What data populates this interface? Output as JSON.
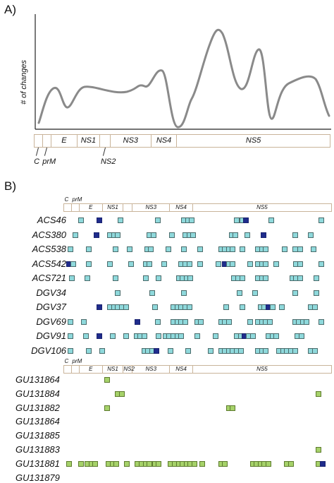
{
  "panel_a": {
    "label": "A)",
    "ylabel": "# of changes",
    "curve_color": "#8a8a8a",
    "segments": [
      {
        "name": "",
        "len": 1.0
      },
      {
        "name": "",
        "len": 1.0
      },
      {
        "name": "E",
        "len": 3.0
      },
      {
        "name": "NS1",
        "len": 2.7
      },
      {
        "name": "",
        "len": 1.2
      },
      {
        "name": "NS3",
        "len": 4.8
      },
      {
        "name": "NS4",
        "len": 3.0
      },
      {
        "name": "NS5",
        "len": 17.9
      }
    ],
    "below_labels": [
      {
        "text": "C",
        "seg": 0
      },
      {
        "text": "prM",
        "seg": 1
      },
      {
        "text": "NS2",
        "seg": 4
      }
    ]
  },
  "panel_b": {
    "label": "B)",
    "bar_top": {
      "segments": [
        {
          "name": "",
          "len": 1.0
        },
        {
          "name": "",
          "len": 1.0
        },
        {
          "name": "E",
          "len": 3.0
        },
        {
          "name": "NS1",
          "len": 2.7
        },
        {
          "name": "",
          "len": 1.2
        },
        {
          "name": "NS3",
          "len": 4.8
        },
        {
          "name": "NS4",
          "len": 3.0
        },
        {
          "name": "NS5",
          "len": 17.9
        }
      ],
      "above_labels": [
        {
          "text": "C",
          "seg": 0
        },
        {
          "text": "prM",
          "seg": 1
        }
      ]
    },
    "bar_bottom": {
      "segments": [
        {
          "name": "",
          "len": 1.0
        },
        {
          "name": "",
          "len": 1.0
        },
        {
          "name": "E",
          "len": 3.0
        },
        {
          "name": "NS1",
          "len": 2.7
        },
        {
          "name": "NS2",
          "len": 1.2
        },
        {
          "name": "NS3",
          "len": 4.8
        },
        {
          "name": "NS4",
          "len": 3.0
        },
        {
          "name": "NS5",
          "len": 17.9
        }
      ],
      "above_labels": [
        {
          "text": "C",
          "seg": 0
        },
        {
          "text": "prM",
          "seg": 1
        }
      ]
    },
    "colors": {
      "teal": "#8fd9dc",
      "navy": "#1f2c8c",
      "green": "#a6d26a"
    },
    "group1": [
      {
        "name": "ACS46",
        "marks": [
          [
            0.05,
            "t"
          ],
          [
            0.12,
            "n"
          ],
          [
            0.2,
            "t"
          ],
          [
            0.34,
            "t"
          ],
          [
            0.44,
            "t"
          ],
          [
            0.455,
            "t"
          ],
          [
            0.47,
            "t"
          ],
          [
            0.64,
            "t"
          ],
          [
            0.66,
            "t"
          ],
          [
            0.675,
            "n"
          ],
          [
            0.77,
            "t"
          ],
          [
            0.96,
            "t"
          ]
        ]
      },
      {
        "name": "ACS380",
        "marks": [
          [
            0.03,
            "t"
          ],
          [
            0.11,
            "n"
          ],
          [
            0.16,
            "t"
          ],
          [
            0.175,
            "t"
          ],
          [
            0.19,
            "t"
          ],
          [
            0.31,
            "t"
          ],
          [
            0.325,
            "t"
          ],
          [
            0.395,
            "t"
          ],
          [
            0.445,
            "t"
          ],
          [
            0.46,
            "t"
          ],
          [
            0.475,
            "t"
          ],
          [
            0.62,
            "t"
          ],
          [
            0.635,
            "t"
          ],
          [
            0.68,
            "t"
          ],
          [
            0.74,
            "n"
          ],
          [
            0.86,
            "t"
          ],
          [
            0.92,
            "t"
          ]
        ]
      },
      {
        "name": "ACS538",
        "marks": [
          [
            0.01,
            "t"
          ],
          [
            0.08,
            "t"
          ],
          [
            0.18,
            "t"
          ],
          [
            0.235,
            "t"
          ],
          [
            0.3,
            "t"
          ],
          [
            0.315,
            "t"
          ],
          [
            0.38,
            "t"
          ],
          [
            0.44,
            "t"
          ],
          [
            0.5,
            "t"
          ],
          [
            0.58,
            "t"
          ],
          [
            0.595,
            "t"
          ],
          [
            0.61,
            "t"
          ],
          [
            0.625,
            "t"
          ],
          [
            0.66,
            "t"
          ],
          [
            0.72,
            "t"
          ],
          [
            0.735,
            "t"
          ],
          [
            0.75,
            "t"
          ],
          [
            0.82,
            "t"
          ],
          [
            0.86,
            "t"
          ],
          [
            0.88,
            "t"
          ],
          [
            0.93,
            "t"
          ]
        ]
      },
      {
        "name": "ACS542",
        "marks": [
          [
            0.005,
            "n"
          ],
          [
            0.02,
            "t"
          ],
          [
            0.08,
            "t"
          ],
          [
            0.16,
            "t"
          ],
          [
            0.24,
            "t"
          ],
          [
            0.295,
            "t"
          ],
          [
            0.31,
            "t"
          ],
          [
            0.365,
            "t"
          ],
          [
            0.43,
            "t"
          ],
          [
            0.445,
            "t"
          ],
          [
            0.46,
            "t"
          ],
          [
            0.5,
            "t"
          ],
          [
            0.57,
            "t"
          ],
          [
            0.595,
            "n"
          ],
          [
            0.61,
            "t"
          ],
          [
            0.625,
            "t"
          ],
          [
            0.69,
            "t"
          ],
          [
            0.72,
            "t"
          ],
          [
            0.735,
            "t"
          ],
          [
            0.75,
            "t"
          ],
          [
            0.79,
            "t"
          ],
          [
            0.865,
            "t"
          ],
          [
            0.88,
            "t"
          ],
          [
            0.96,
            "t"
          ]
        ]
      },
      {
        "name": "ACS721",
        "marks": [
          [
            0.015,
            "t"
          ],
          [
            0.075,
            "t"
          ],
          [
            0.18,
            "t"
          ],
          [
            0.295,
            "t"
          ],
          [
            0.345,
            "t"
          ],
          [
            0.42,
            "t"
          ],
          [
            0.435,
            "t"
          ],
          [
            0.45,
            "t"
          ],
          [
            0.465,
            "t"
          ],
          [
            0.63,
            "t"
          ],
          [
            0.645,
            "t"
          ],
          [
            0.66,
            "t"
          ],
          [
            0.72,
            "t"
          ],
          [
            0.735,
            "t"
          ],
          [
            0.75,
            "t"
          ],
          [
            0.85,
            "t"
          ],
          [
            0.865,
            "t"
          ],
          [
            0.88,
            "t"
          ],
          [
            0.94,
            "t"
          ]
        ]
      },
      {
        "name": "DGV34",
        "marks": [
          [
            0.19,
            "t"
          ],
          [
            0.32,
            "t"
          ],
          [
            0.44,
            "t"
          ],
          [
            0.65,
            "t"
          ],
          [
            0.71,
            "t"
          ],
          [
            0.86,
            "t"
          ],
          [
            0.94,
            "t"
          ]
        ]
      },
      {
        "name": "DGV37",
        "marks": [
          [
            0.12,
            "n"
          ],
          [
            0.16,
            "t"
          ],
          [
            0.175,
            "t"
          ],
          [
            0.19,
            "t"
          ],
          [
            0.205,
            "t"
          ],
          [
            0.22,
            "t"
          ],
          [
            0.33,
            "t"
          ],
          [
            0.4,
            "t"
          ],
          [
            0.415,
            "t"
          ],
          [
            0.43,
            "t"
          ],
          [
            0.445,
            "t"
          ],
          [
            0.46,
            "t"
          ],
          [
            0.6,
            "t"
          ],
          [
            0.66,
            "t"
          ],
          [
            0.73,
            "t"
          ],
          [
            0.745,
            "t"
          ],
          [
            0.76,
            "n"
          ],
          [
            0.775,
            "t"
          ],
          [
            0.81,
            "t"
          ],
          [
            0.92,
            "t"
          ],
          [
            0.935,
            "t"
          ]
        ]
      },
      {
        "name": "DGV69",
        "marks": [
          [
            0.01,
            "t"
          ],
          [
            0.06,
            "t"
          ],
          [
            0.265,
            "n"
          ],
          [
            0.34,
            "t"
          ],
          [
            0.4,
            "t"
          ],
          [
            0.415,
            "t"
          ],
          [
            0.43,
            "t"
          ],
          [
            0.445,
            "t"
          ],
          [
            0.49,
            "t"
          ],
          [
            0.505,
            "t"
          ],
          [
            0.58,
            "t"
          ],
          [
            0.595,
            "t"
          ],
          [
            0.61,
            "t"
          ],
          [
            0.69,
            "t"
          ],
          [
            0.72,
            "t"
          ],
          [
            0.735,
            "t"
          ],
          [
            0.75,
            "t"
          ],
          [
            0.765,
            "t"
          ],
          [
            0.86,
            "t"
          ],
          [
            0.875,
            "t"
          ],
          [
            0.89,
            "t"
          ],
          [
            0.905,
            "t"
          ],
          [
            0.96,
            "t"
          ]
        ]
      },
      {
        "name": "DGV91",
        "marks": [
          [
            0.01,
            "t"
          ],
          [
            0.07,
            "t"
          ],
          [
            0.12,
            "n"
          ],
          [
            0.17,
            "t"
          ],
          [
            0.22,
            "t"
          ],
          [
            0.26,
            "t"
          ],
          [
            0.275,
            "t"
          ],
          [
            0.29,
            "t"
          ],
          [
            0.345,
            "t"
          ],
          [
            0.37,
            "t"
          ],
          [
            0.385,
            "t"
          ],
          [
            0.4,
            "t"
          ],
          [
            0.415,
            "t"
          ],
          [
            0.43,
            "t"
          ],
          [
            0.49,
            "t"
          ],
          [
            0.56,
            "t"
          ],
          [
            0.64,
            "t"
          ],
          [
            0.655,
            "t"
          ],
          [
            0.67,
            "n"
          ],
          [
            0.685,
            "t"
          ],
          [
            0.7,
            "t"
          ],
          [
            0.76,
            "t"
          ],
          [
            0.775,
            "t"
          ],
          [
            0.79,
            "t"
          ],
          [
            0.87,
            "t"
          ],
          [
            0.885,
            "t"
          ]
        ]
      },
      {
        "name": "DGV106",
        "marks": [
          [
            0.01,
            "t"
          ],
          [
            0.08,
            "t"
          ],
          [
            0.13,
            "t"
          ],
          [
            0.29,
            "t"
          ],
          [
            0.305,
            "t"
          ],
          [
            0.32,
            "t"
          ],
          [
            0.335,
            "n"
          ],
          [
            0.39,
            "t"
          ],
          [
            0.455,
            "t"
          ],
          [
            0.54,
            "t"
          ],
          [
            0.58,
            "t"
          ],
          [
            0.595,
            "t"
          ],
          [
            0.61,
            "t"
          ],
          [
            0.625,
            "t"
          ],
          [
            0.64,
            "t"
          ],
          [
            0.655,
            "t"
          ],
          [
            0.72,
            "t"
          ],
          [
            0.735,
            "t"
          ],
          [
            0.75,
            "t"
          ],
          [
            0.8,
            "t"
          ],
          [
            0.815,
            "t"
          ],
          [
            0.83,
            "t"
          ],
          [
            0.845,
            "t"
          ],
          [
            0.86,
            "t"
          ],
          [
            0.92,
            "t"
          ],
          [
            0.935,
            "t"
          ]
        ]
      }
    ],
    "group2": [
      {
        "name": "GU131864",
        "marks": [
          [
            0.15,
            "g"
          ]
        ]
      },
      {
        "name": "GU131884",
        "marks": [
          [
            0.19,
            "g"
          ],
          [
            0.205,
            "g"
          ],
          [
            0.95,
            "g"
          ]
        ]
      },
      {
        "name": "GU131882",
        "marks": [
          [
            0.15,
            "g"
          ],
          [
            0.61,
            "g"
          ],
          [
            0.625,
            "g"
          ]
        ]
      },
      {
        "name": "GU131864",
        "marks": []
      },
      {
        "name": "GU131885",
        "marks": []
      },
      {
        "name": "GU131883",
        "marks": [
          [
            0.95,
            "g"
          ]
        ]
      },
      {
        "name": "GU131881",
        "marks": [
          [
            0.005,
            "g"
          ],
          [
            0.05,
            "g"
          ],
          [
            0.075,
            "g"
          ],
          [
            0.09,
            "g"
          ],
          [
            0.105,
            "g"
          ],
          [
            0.155,
            "g"
          ],
          [
            0.17,
            "g"
          ],
          [
            0.185,
            "g"
          ],
          [
            0.225,
            "g"
          ],
          [
            0.265,
            "g"
          ],
          [
            0.28,
            "g"
          ],
          [
            0.295,
            "g"
          ],
          [
            0.31,
            "g"
          ],
          [
            0.33,
            "g"
          ],
          [
            0.345,
            "g"
          ],
          [
            0.39,
            "g"
          ],
          [
            0.405,
            "g"
          ],
          [
            0.42,
            "g"
          ],
          [
            0.435,
            "g"
          ],
          [
            0.45,
            "g"
          ],
          [
            0.465,
            "g"
          ],
          [
            0.48,
            "g"
          ],
          [
            0.51,
            "g"
          ],
          [
            0.58,
            "g"
          ],
          [
            0.595,
            "g"
          ],
          [
            0.7,
            "g"
          ],
          [
            0.715,
            "g"
          ],
          [
            0.73,
            "g"
          ],
          [
            0.745,
            "g"
          ],
          [
            0.76,
            "g"
          ],
          [
            0.83,
            "g"
          ],
          [
            0.845,
            "g"
          ],
          [
            0.95,
            "g"
          ],
          [
            0.965,
            "n"
          ]
        ]
      },
      {
        "name": "GU131879",
        "marks": []
      }
    ]
  }
}
